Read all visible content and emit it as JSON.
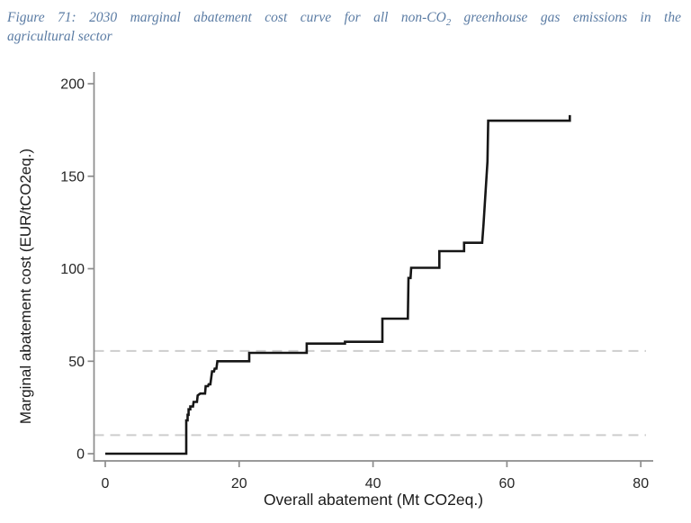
{
  "figure": {
    "caption_prefix": "Figure 71: 2030 marginal abatement cost curve for all non-CO",
    "caption_subscript": "2",
    "caption_suffix": " greenhouse gas emissions in the",
    "caption_line2": "agricultural sector",
    "caption_color": "#5b7ca4"
  },
  "chart_data": {
    "type": "line",
    "subtype": "step-curve",
    "title": "2030 marginal abatement cost curve for all non-CO2 greenhouse gas emissions in the agricultural sector",
    "xlabel": "Overall abatement (Mt CO2eq.)",
    "ylabel": "Marginal abatement cost (EUR/tCO2eq.)",
    "xlim": [
      0,
      80
    ],
    "ylim": [
      0,
      200
    ],
    "xticks": [
      "0",
      "20",
      "40",
      "60",
      "80"
    ],
    "yticks": [
      "0",
      "50",
      "100",
      "150",
      "200"
    ],
    "xtick_values": [
      0,
      20,
      40,
      60,
      80
    ],
    "ytick_values": [
      0,
      50,
      100,
      150,
      200
    ],
    "grid": false,
    "legend_position": "none",
    "line_color": "#161616",
    "axis_color": "#8c8c8c",
    "tick_label_color": "#262626",
    "reference_lines": [
      {
        "y": 55.5,
        "style": "dashed",
        "color": "#cdcdcd"
      },
      {
        "y": 10,
        "style": "dashed",
        "color": "#cdcdcd"
      }
    ],
    "series": [
      {
        "name": "marginal-abatement-cost-curve",
        "points": [
          [
            0,
            0
          ],
          [
            12.1,
            0
          ],
          [
            12.1,
            18
          ],
          [
            12.3,
            18
          ],
          [
            12.3,
            21
          ],
          [
            12.45,
            21
          ],
          [
            12.45,
            24
          ],
          [
            12.7,
            24
          ],
          [
            12.7,
            25.5
          ],
          [
            13.1,
            25.5
          ],
          [
            13.2,
            28
          ],
          [
            13.7,
            28
          ],
          [
            13.8,
            31.5
          ],
          [
            14.2,
            32.5
          ],
          [
            14.9,
            32.5
          ],
          [
            15.0,
            36.5
          ],
          [
            15.35,
            36.5
          ],
          [
            15.45,
            37.5
          ],
          [
            15.7,
            37.5
          ],
          [
            15.95,
            44.5
          ],
          [
            16.25,
            44.5
          ],
          [
            16.35,
            46
          ],
          [
            16.6,
            46
          ],
          [
            16.75,
            50
          ],
          [
            21.5,
            50
          ],
          [
            21.5,
            54.5
          ],
          [
            30.1,
            54.5
          ],
          [
            30.1,
            59.5
          ],
          [
            35.8,
            59.5
          ],
          [
            35.8,
            60.5
          ],
          [
            41.4,
            60.5
          ],
          [
            41.4,
            73
          ],
          [
            45.2,
            73
          ],
          [
            45.3,
            95
          ],
          [
            45.6,
            95
          ],
          [
            45.7,
            100.5
          ],
          [
            49.9,
            100.5
          ],
          [
            49.9,
            109.5
          ],
          [
            53.6,
            109.5
          ],
          [
            53.6,
            114
          ],
          [
            56.3,
            114
          ],
          [
            56.5,
            124
          ],
          [
            57.1,
            158
          ],
          [
            57.2,
            180
          ],
          [
            69.4,
            180
          ],
          [
            69.4,
            183
          ]
        ]
      }
    ]
  }
}
